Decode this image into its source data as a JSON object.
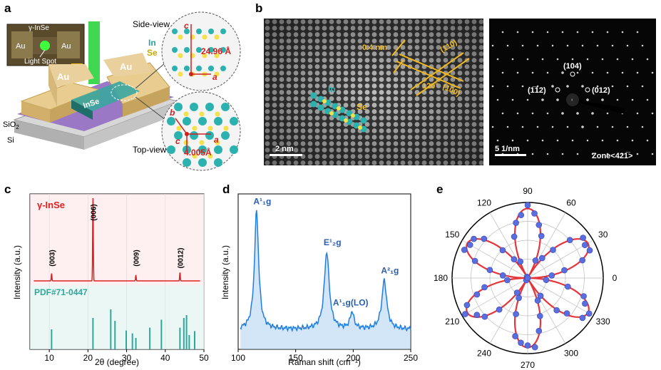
{
  "panels": {
    "a": {
      "label": "a",
      "inset_title": "γ-InSe",
      "inset_au_left": "Au",
      "inset_au_right": "Au",
      "inset_light_spot": "Light Spot",
      "au_left": "Au",
      "au_right": "Au",
      "flake": "InSe",
      "substrate_sio2": "SiO",
      "substrate_sio2_sub": "2",
      "substrate_si": "Si",
      "side_view_title": "Side-view",
      "side_in": "In",
      "side_se": "Se",
      "side_c_axis": "c",
      "side_a_axis": "a",
      "side_dim": "24.96 Å",
      "top_view_title": "Top-view",
      "top_b_axis": "b",
      "top_c_axis": "c",
      "top_a_axis": "a",
      "top_dim": "4.005Å"
    },
    "b": {
      "label": "b",
      "spacing": "0.4 nm",
      "plane_110": "(110)",
      "plane_100": "(100)",
      "angle": "120°",
      "atom_in": "In",
      "atom_se": "Se",
      "scale_bar": "2 nm",
      "saed_spot_104": "(104)",
      "saed_spot_112": "(1̅12)",
      "saed_spot_012": "(012)",
      "saed_scale": "5 1/nm",
      "zone_axis": "Zone<421̅>"
    }
  },
  "chart_data": [
    {
      "id": "c",
      "type": "line",
      "label": "c",
      "title": "γ-InSe",
      "reference_label": "PDF#71-0447",
      "xlabel": "2θ (degree)",
      "ylabel": "Intensity (a.u.)",
      "xlim": [
        5,
        50
      ],
      "xticks": [
        10,
        20,
        30,
        40,
        50
      ],
      "peaks": [
        {
          "x": 10.6,
          "height": 0.09,
          "label": "(003)"
        },
        {
          "x": 21.3,
          "height": 1.0,
          "label": "(006)"
        },
        {
          "x": 32.4,
          "height": 0.07,
          "label": "(009)"
        },
        {
          "x": 43.8,
          "height": 0.1,
          "label": "(0012)"
        }
      ],
      "reference_sticks": [
        {
          "x": 10.6,
          "h": 0.35
        },
        {
          "x": 21.3,
          "h": 0.55
        },
        {
          "x": 25.9,
          "h": 0.7
        },
        {
          "x": 27.0,
          "h": 0.5
        },
        {
          "x": 29.9,
          "h": 0.33
        },
        {
          "x": 31.5,
          "h": 0.28
        },
        {
          "x": 32.4,
          "h": 0.2
        },
        {
          "x": 36.0,
          "h": 0.38
        },
        {
          "x": 39.0,
          "h": 0.52
        },
        {
          "x": 43.8,
          "h": 0.38
        },
        {
          "x": 44.8,
          "h": 0.55
        },
        {
          "x": 45.5,
          "h": 0.6
        },
        {
          "x": 46.2,
          "h": 0.25
        },
        {
          "x": 47.6,
          "h": 0.32
        }
      ]
    },
    {
      "id": "d",
      "type": "line",
      "label": "d",
      "xlabel": "Raman shift (cm⁻¹)",
      "ylabel": "Intensity (a.u.)",
      "xlim": [
        100,
        250
      ],
      "xticks": [
        100,
        150,
        200,
        250
      ],
      "peaks": [
        {
          "x": 116,
          "height": 0.92,
          "width": 2.2,
          "label": "A¹₁g"
        },
        {
          "x": 177,
          "height": 0.6,
          "width": 2.6,
          "label": "E¹₂g"
        },
        {
          "x": 199,
          "height": 0.13,
          "width": 2.0,
          "label": "A¹₁g(LO)"
        },
        {
          "x": 227,
          "height": 0.38,
          "width": 2.6,
          "label": "A²₁g"
        }
      ]
    },
    {
      "id": "e",
      "type": "scatter",
      "label": "e",
      "polar": true,
      "angle_ticks": [
        0,
        30,
        60,
        90,
        120,
        150,
        180,
        210,
        240,
        270,
        300,
        330
      ],
      "fit": "six-petal rose: r = |cos(3(θ - 90°))|",
      "petal_directions_deg": [
        90,
        150,
        210,
        270,
        330,
        30
      ],
      "points_step_deg": 6
    }
  ]
}
